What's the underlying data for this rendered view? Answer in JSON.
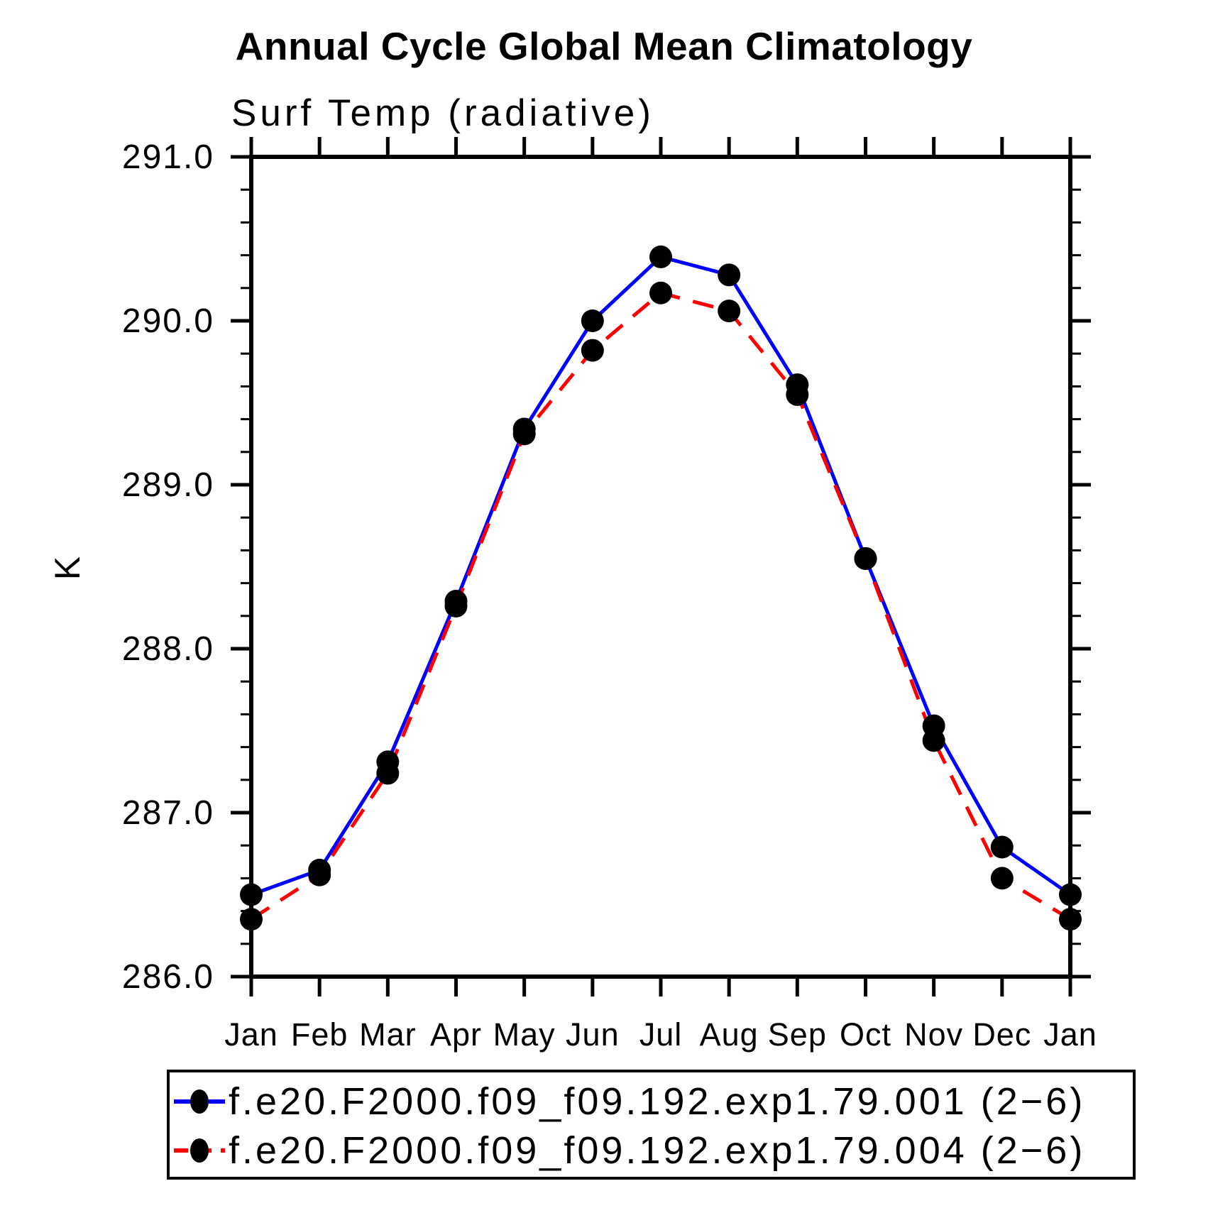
{
  "chart_data": {
    "type": "line",
    "title": "Annual Cycle Global Mean Climatology",
    "subtitle": "Surf Temp (radiative)",
    "ylabel": "K",
    "xlabel": "",
    "ylim": [
      286.0,
      291.0
    ],
    "y_major_step": 1.0,
    "y_minor_step": 0.2,
    "y_tick_labels": [
      "286.0",
      "287.0",
      "288.0",
      "289.0",
      "290.0",
      "291.0"
    ],
    "categories": [
      "Jan",
      "Feb",
      "Mar",
      "Apr",
      "May",
      "Jun",
      "Jul",
      "Aug",
      "Sep",
      "Oct",
      "Nov",
      "Dec",
      "Jan"
    ],
    "grid": false,
    "legend_position": "bottom",
    "marker_color": "#000000",
    "axis_color": "#000000",
    "series": [
      {
        "name": "f.e20.F2000.f09_f09.192.exp1.79.001 (2−6)",
        "color": "#0000ff",
        "style": "solid",
        "marker": "circle",
        "values": [
          286.5,
          286.65,
          287.31,
          288.29,
          289.34,
          290.0,
          290.39,
          290.28,
          289.61,
          288.55,
          287.53,
          286.79,
          286.5
        ]
      },
      {
        "name": "f.e20.F2000.f09_f09.192.exp1.79.004 (2−6)",
        "color": "#ff0000",
        "style": "dashed",
        "marker": "circle",
        "values": [
          286.35,
          286.62,
          287.24,
          288.26,
          289.31,
          289.82,
          290.17,
          290.06,
          289.55,
          288.55,
          287.44,
          286.6,
          286.35
        ]
      }
    ]
  }
}
